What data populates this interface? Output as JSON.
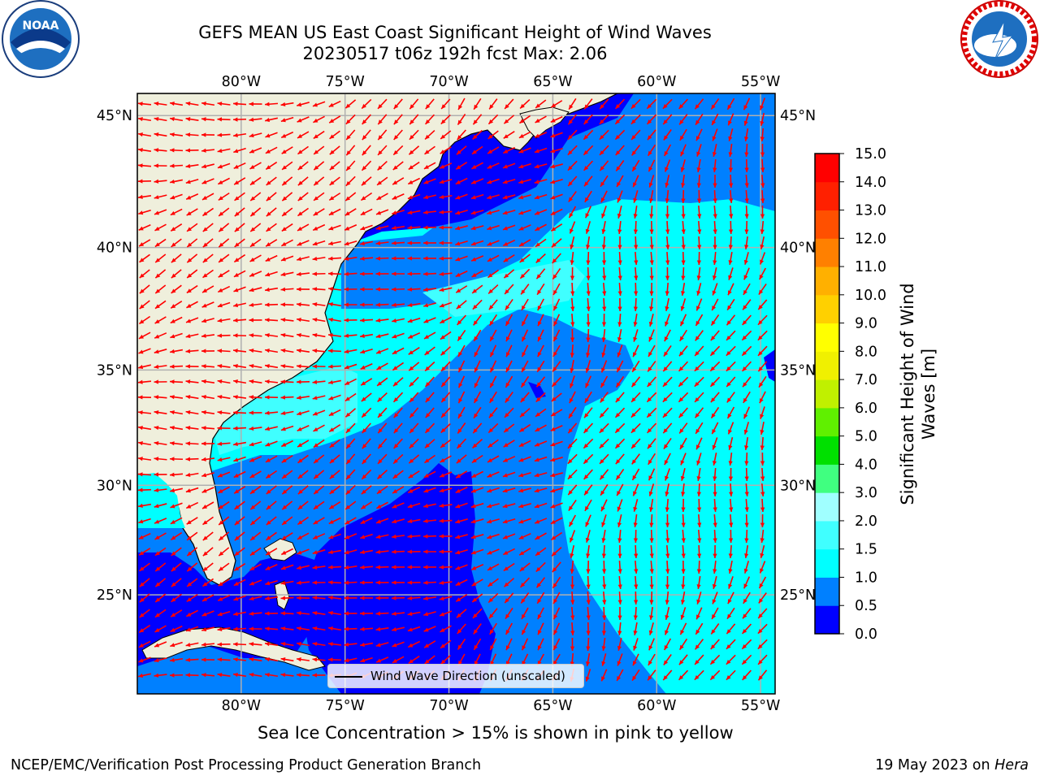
{
  "header": {
    "title_line1": "GEFS MEAN US East Coast Significant Height of Wind Waves",
    "title_line2": "20230517 t06z 192h fcst   Max: 2.06"
  },
  "logos": {
    "left": {
      "name": "noaa-logo",
      "text": "NOAA"
    },
    "right": {
      "name": "nws-logo",
      "text": "NATIONAL WEATHER SERVICE"
    }
  },
  "map": {
    "lon_labels": [
      "80°W",
      "75°W",
      "70°W",
      "65°W",
      "60°W",
      "55°W"
    ],
    "lat_labels": [
      "45°N",
      "40°N",
      "35°N",
      "30°N",
      "25°N"
    ],
    "lon_values": [
      -80,
      -75,
      -70,
      -65,
      -60,
      -55
    ],
    "lat_values": [
      45,
      40,
      35,
      30,
      25
    ],
    "arrow_color": "#ff0000",
    "land_color": "#efefdc",
    "gridline_color": "#b0b0b0"
  },
  "legend": {
    "label": "Wind Wave Direction (unscaled)"
  },
  "colorbar": {
    "title": "Significant Height of Wind Waves [m]",
    "ticks": [
      "15.0",
      "14.0",
      "13.0",
      "12.0",
      "11.0",
      "10.0",
      "9.0",
      "8.0",
      "7.0",
      "6.0",
      "5.0",
      "4.0",
      "3.0",
      "2.0",
      "1.5",
      "1.0",
      "0.5",
      "0.0"
    ],
    "colors": [
      "#0000ff",
      "#0080ff",
      "#00ffff",
      "#40ffff",
      "#a0ffff",
      "#40ff80",
      "#00e000",
      "#60f000",
      "#c0f000",
      "#f0f000",
      "#ffff00",
      "#ffd000",
      "#ffb000",
      "#ff8000",
      "#ff5000",
      "#ff2000",
      "#ff0000"
    ]
  },
  "chart_data": {
    "type": "heatmap",
    "title": "GEFS MEAN US East Coast Significant Height of Wind Waves",
    "subtitle": "20230517 t06z 192h fcst   Max: 2.06",
    "xlim": [
      -85,
      -54.3
    ],
    "ylim": [
      20.3,
      45.8
    ],
    "color_levels": [
      0.0,
      0.5,
      1.0,
      1.5,
      2.0,
      3.0,
      4.0,
      5.0,
      6.0,
      7.0,
      8.0,
      9.0,
      10.0,
      11.0,
      12.0,
      13.0,
      14.0,
      15.0
    ],
    "colorbar_label": "Significant Height of Wind Waves [m]",
    "max_value": 2.06
  },
  "notes": {
    "sea_ice": "Sea Ice Concentration > 15% is shown in pink to yellow",
    "credit": "NCEP/EMC/Verification Post Processing Product Generation Branch",
    "date": "19 May 2023 on ",
    "machine": "Hera"
  }
}
